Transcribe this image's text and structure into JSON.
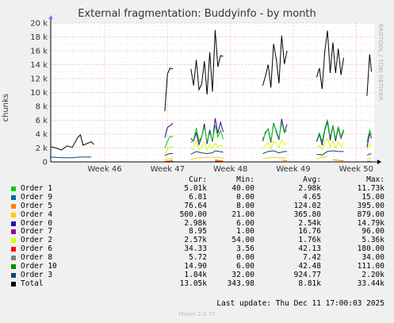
{
  "title": "External fragmentation: Buddyinfo - by month",
  "side_text": "RRDTOOL / TOBI OETIKER",
  "footer": "Munin 2.0.73",
  "last_update": "Last update: Thu Dec 11 17:00:03 2025",
  "legend": {
    "headers": [
      "Cur:",
      "Min:",
      "Avg:",
      "Max:"
    ],
    "rows": [
      {
        "name": "Order 1",
        "color": "#00cc00",
        "cur": "5.01k",
        "min": "40.00",
        "avg": "2.98k",
        "max": "11.73k"
      },
      {
        "name": "Order 9",
        "color": "#0066b3",
        "cur": "6.81",
        "min": "0.00",
        "avg": "4.65",
        "max": "15.00"
      },
      {
        "name": "Order 5",
        "color": "#ff8000",
        "cur": "76.64",
        "min": "8.00",
        "avg": "124.02",
        "max": "395.00"
      },
      {
        "name": "Order 4",
        "color": "#ffcc00",
        "cur": "500.00",
        "min": "21.00",
        "avg": "365.80",
        "max": "879.00"
      },
      {
        "name": "Order 0",
        "color": "#330099",
        "cur": "2.98k",
        "min": "6.00",
        "avg": "2.54k",
        "max": "14.79k"
      },
      {
        "name": "Order 7",
        "color": "#990099",
        "cur": "8.95",
        "min": "1.00",
        "avg": "16.76",
        "max": "96.00"
      },
      {
        "name": "Order 2",
        "color": "#ccff00",
        "cur": "2.57k",
        "min": "54.00",
        "avg": "1.76k",
        "max": "5.36k"
      },
      {
        "name": "Order 6",
        "color": "#ff0000",
        "cur": "34.33",
        "min": "3.56",
        "avg": "42.13",
        "max": "180.00"
      },
      {
        "name": "Order 8",
        "color": "#808080",
        "cur": "5.72",
        "min": "0.00",
        "avg": "7.42",
        "max": "34.00"
      },
      {
        "name": "Order 10",
        "color": "#008f00",
        "cur": "14.90",
        "min": "6.00",
        "avg": "42.48",
        "max": "111.00"
      },
      {
        "name": "Order 3",
        "color": "#00487d",
        "cur": "1.84k",
        "min": "32.00",
        "avg": "924.77",
        "max": "2.20k"
      },
      {
        "name": "Total",
        "color": "#000000",
        "cur": "13.05k",
        "min": "343.98",
        "avg": "8.81k",
        "max": "33.44k"
      }
    ]
  },
  "chart_data": {
    "type": "line",
    "title": "External fragmentation: Buddyinfo - by month",
    "ylabel": "chunks",
    "ylim": [
      0,
      20000
    ],
    "yticks": [
      0,
      2000,
      4000,
      6000,
      8000,
      10000,
      12000,
      14000,
      16000,
      18000,
      20000
    ],
    "ytick_labels": [
      "0",
      "2 k",
      "4 k",
      "6 k",
      "8 k",
      "10 k",
      "12 k",
      "14 k",
      "16 k",
      "18 k",
      "20 k"
    ],
    "xlim": [
      0,
      36
    ],
    "xticks": [
      6,
      13,
      20,
      27,
      34
    ],
    "xtick_labels": [
      "Week 46",
      "Week 47",
      "Week 48",
      "Week 49",
      "Week 50"
    ],
    "grid": true,
    "series": [
      {
        "name": "Total",
        "color": "#000000",
        "points": [
          [
            0,
            2200
          ],
          [
            0.6,
            2000
          ],
          [
            1.2,
            1700
          ],
          [
            1.8,
            2300
          ],
          [
            2.4,
            2100
          ],
          [
            3,
            3500
          ],
          [
            3.3,
            3900
          ],
          [
            3.6,
            2400
          ],
          [
            4.5,
            2900
          ],
          [
            4.8,
            2500
          ],
          [
            12.7,
            7300
          ],
          [
            13,
            12700
          ],
          [
            13.3,
            13500
          ],
          [
            13.6,
            13400
          ],
          [
            15.6,
            13400
          ],
          [
            15.9,
            11000
          ],
          [
            16.2,
            14700
          ],
          [
            16.5,
            10400
          ],
          [
            16.8,
            11200
          ],
          [
            17.1,
            14500
          ],
          [
            17.4,
            9700
          ],
          [
            17.7,
            15800
          ],
          [
            18,
            10100
          ],
          [
            18.3,
            19000
          ],
          [
            18.6,
            13700
          ],
          [
            18.9,
            15300
          ],
          [
            19.2,
            15200
          ],
          [
            23.6,
            11000
          ],
          [
            23.9,
            12400
          ],
          [
            24.2,
            14000
          ],
          [
            24.5,
            10700
          ],
          [
            24.8,
            17000
          ],
          [
            25.1,
            14800
          ],
          [
            25.4,
            11300
          ],
          [
            25.7,
            18200
          ],
          [
            26,
            14100
          ],
          [
            26.3,
            16000
          ],
          [
            29.6,
            12200
          ],
          [
            29.9,
            13500
          ],
          [
            30.2,
            10500
          ],
          [
            30.5,
            15900
          ],
          [
            30.8,
            18900
          ],
          [
            31.1,
            12800
          ],
          [
            31.4,
            17200
          ],
          [
            31.7,
            12800
          ],
          [
            32,
            16300
          ],
          [
            32.3,
            12500
          ],
          [
            32.6,
            15000
          ],
          [
            35.2,
            9500
          ],
          [
            35.5,
            15500
          ],
          [
            35.7,
            13000
          ]
        ]
      },
      {
        "name": "Order 0",
        "color": "#330099",
        "points": [
          [
            12.7,
            3500
          ],
          [
            13,
            5000
          ],
          [
            13.3,
            5200
          ],
          [
            13.6,
            5600
          ],
          [
            15.6,
            3400
          ],
          [
            15.9,
            3000
          ],
          [
            16.2,
            4200
          ],
          [
            16.5,
            2500
          ],
          [
            16.8,
            3600
          ],
          [
            17.1,
            5500
          ],
          [
            17.4,
            2600
          ],
          [
            17.7,
            4600
          ],
          [
            18,
            2900
          ],
          [
            18.3,
            6300
          ],
          [
            18.6,
            4100
          ],
          [
            18.9,
            5700
          ],
          [
            19.2,
            4300
          ],
          [
            23.6,
            3000
          ],
          [
            23.9,
            4300
          ],
          [
            24.2,
            4700
          ],
          [
            24.5,
            2800
          ],
          [
            24.8,
            5600
          ],
          [
            25.1,
            4300
          ],
          [
            25.4,
            3200
          ],
          [
            25.7,
            6200
          ],
          [
            26,
            4300
          ],
          [
            26.3,
            5400
          ],
          [
            29.6,
            2900
          ],
          [
            29.9,
            4000
          ],
          [
            30.2,
            2400
          ],
          [
            30.5,
            4600
          ],
          [
            30.8,
            5800
          ],
          [
            31.1,
            3100
          ],
          [
            31.4,
            5200
          ],
          [
            31.7,
            3000
          ],
          [
            32,
            4900
          ],
          [
            32.3,
            3400
          ],
          [
            32.6,
            4500
          ],
          [
            35.2,
            2100
          ],
          [
            35.5,
            4100
          ],
          [
            35.7,
            3400
          ]
        ]
      },
      {
        "name": "Order 1",
        "color": "#00cc00",
        "points": [
          [
            12.7,
            2000
          ],
          [
            13,
            3000
          ],
          [
            13.3,
            3700
          ],
          [
            13.6,
            3600
          ],
          [
            15.6,
            2800
          ],
          [
            15.9,
            3100
          ],
          [
            16.2,
            4900
          ],
          [
            16.5,
            3000
          ],
          [
            16.8,
            3600
          ],
          [
            17.1,
            5100
          ],
          [
            17.4,
            2900
          ],
          [
            17.7,
            4200
          ],
          [
            18,
            3100
          ],
          [
            18.3,
            5300
          ],
          [
            18.6,
            3600
          ],
          [
            18.9,
            4500
          ],
          [
            19.2,
            3300
          ],
          [
            23.6,
            3300
          ],
          [
            23.9,
            4100
          ],
          [
            24.2,
            4800
          ],
          [
            24.5,
            3000
          ],
          [
            24.8,
            5400
          ],
          [
            25.1,
            4500
          ],
          [
            25.4,
            3400
          ],
          [
            25.7,
            5700
          ],
          [
            26,
            4200
          ],
          [
            26.3,
            4600
          ],
          [
            29.6,
            3100
          ],
          [
            29.9,
            4200
          ],
          [
            30.2,
            2900
          ],
          [
            30.5,
            4800
          ],
          [
            30.8,
            6100
          ],
          [
            31.1,
            3500
          ],
          [
            31.4,
            5300
          ],
          [
            31.7,
            3300
          ],
          [
            32,
            5100
          ],
          [
            32.3,
            3600
          ],
          [
            32.6,
            4700
          ],
          [
            35.2,
            2800
          ],
          [
            35.5,
            4600
          ],
          [
            35.7,
            3900
          ]
        ]
      },
      {
        "name": "Order 2",
        "color": "#ccff00",
        "points": [
          [
            12.7,
            1200
          ],
          [
            13,
            1800
          ],
          [
            13.3,
            2200
          ],
          [
            13.6,
            2100
          ],
          [
            15.6,
            1700
          ],
          [
            15.9,
            2000
          ],
          [
            16.2,
            3000
          ],
          [
            16.5,
            1800
          ],
          [
            16.8,
            2200
          ],
          [
            17.1,
            2800
          ],
          [
            17.4,
            1700
          ],
          [
            17.7,
            2500
          ],
          [
            18,
            1900
          ],
          [
            18.3,
            2700
          ],
          [
            18.6,
            2100
          ],
          [
            18.9,
            2400
          ],
          [
            19.2,
            2000
          ],
          [
            23.6,
            2000
          ],
          [
            23.9,
            2400
          ],
          [
            24.2,
            2800
          ],
          [
            24.5,
            1900
          ],
          [
            24.8,
            3000
          ],
          [
            25.1,
            2600
          ],
          [
            25.4,
            2100
          ],
          [
            25.7,
            3200
          ],
          [
            26,
            2500
          ],
          [
            26.3,
            2700
          ],
          [
            29.6,
            1900
          ],
          [
            29.9,
            2400
          ],
          [
            30.2,
            1800
          ],
          [
            30.5,
            2800
          ],
          [
            30.8,
            3400
          ],
          [
            31.1,
            2100
          ],
          [
            31.4,
            3000
          ],
          [
            31.7,
            2000
          ],
          [
            32,
            2900
          ],
          [
            32.3,
            2200
          ],
          [
            32.6,
            2700
          ],
          [
            35.2,
            1700
          ],
          [
            35.5,
            2600
          ],
          [
            35.7,
            2300
          ]
        ]
      },
      {
        "name": "Order 3",
        "color": "#00487d",
        "points": [
          [
            0,
            700
          ],
          [
            1.2,
            600
          ],
          [
            2.4,
            600
          ],
          [
            3.3,
            700
          ],
          [
            4.5,
            700
          ],
          [
            12.7,
            900
          ],
          [
            13,
            1100
          ],
          [
            13.3,
            1200
          ],
          [
            13.6,
            1200
          ],
          [
            15.6,
            1100
          ],
          [
            16.2,
            1500
          ],
          [
            16.8,
            1300
          ],
          [
            17.4,
            1200
          ],
          [
            18,
            1300
          ],
          [
            18.3,
            1600
          ],
          [
            19.2,
            1400
          ],
          [
            23.6,
            1200
          ],
          [
            24.2,
            1500
          ],
          [
            24.8,
            1600
          ],
          [
            25.4,
            1300
          ],
          [
            26,
            1500
          ],
          [
            26.3,
            1500
          ],
          [
            29.6,
            1100
          ],
          [
            30.2,
            1000
          ],
          [
            30.8,
            1500
          ],
          [
            31.4,
            1600
          ],
          [
            32,
            1500
          ],
          [
            32.6,
            1500
          ],
          [
            35.2,
            1000
          ],
          [
            35.7,
            1200
          ]
        ]
      },
      {
        "name": "Order 4",
        "color": "#ffcc00",
        "points": [
          [
            0,
            300
          ],
          [
            2.4,
            300
          ],
          [
            4.5,
            300
          ],
          [
            12.7,
            350
          ],
          [
            13.6,
            450
          ],
          [
            15.6,
            400
          ],
          [
            16.8,
            600
          ],
          [
            18.3,
            700
          ],
          [
            19.2,
            500
          ],
          [
            23.6,
            500
          ],
          [
            24.8,
            650
          ],
          [
            26.3,
            550
          ],
          [
            29.6,
            450
          ],
          [
            30.8,
            800
          ],
          [
            32.6,
            600
          ],
          [
            35.2,
            450
          ],
          [
            35.7,
            500
          ]
        ]
      },
      {
        "name": "Order 5",
        "color": "#ff8000",
        "points": [
          [
            0,
            100
          ],
          [
            4.5,
            100
          ],
          [
            12.7,
            100
          ],
          [
            13.6,
            200
          ],
          [
            15.6,
            150
          ],
          [
            18.3,
            300
          ],
          [
            19.2,
            150
          ],
          [
            23.6,
            150
          ],
          [
            25.7,
            250
          ],
          [
            26.3,
            150
          ],
          [
            29.6,
            150
          ],
          [
            31.4,
            300
          ],
          [
            32.6,
            150
          ],
          [
            35.2,
            100
          ],
          [
            35.7,
            80
          ]
        ]
      },
      {
        "name": "Order 6",
        "color": "#ff0000",
        "points": [
          [
            12.7,
            20
          ],
          [
            13.6,
            60
          ],
          [
            18.3,
            120
          ],
          [
            19.2,
            40
          ],
          [
            25.7,
            90
          ],
          [
            31.4,
            150
          ],
          [
            35.7,
            35
          ]
        ]
      }
    ]
  }
}
